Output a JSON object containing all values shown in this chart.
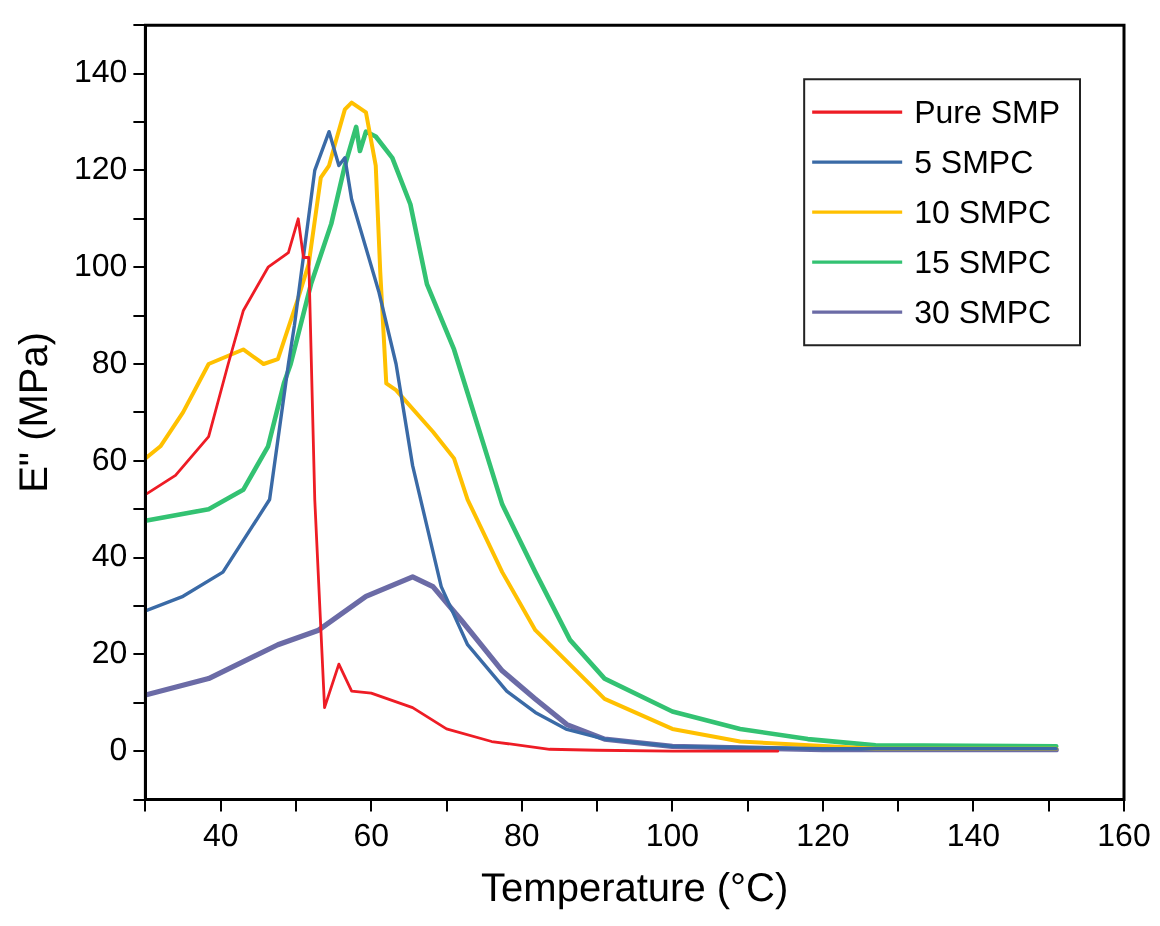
{
  "chart_data": {
    "type": "line",
    "xlabel": "Temperature (°C)",
    "ylabel": "E\" (MPa)",
    "xlim": [
      30,
      160
    ],
    "ylim": [
      -10,
      150
    ],
    "xticks": [
      {
        "value": 30,
        "label": null
      },
      40,
      {
        "value": 50,
        "label": null
      },
      60,
      {
        "value": 70,
        "label": null
      },
      80,
      {
        "value": 90,
        "label": null
      },
      100,
      {
        "value": 110,
        "label": null
      },
      120,
      {
        "value": 130,
        "label": null
      },
      140,
      {
        "value": 150,
        "label": null
      },
      160
    ],
    "yticks": [
      {
        "value": -10,
        "label": null
      },
      0,
      {
        "value": 10,
        "label": null
      },
      20,
      {
        "value": 30,
        "label": null
      },
      40,
      {
        "value": 50,
        "label": null
      },
      60,
      {
        "value": 70,
        "label": null
      },
      80,
      {
        "value": 90,
        "label": null
      },
      100,
      {
        "value": 110,
        "label": null
      },
      120,
      {
        "value": 130,
        "label": null
      },
      140,
      {
        "value": 150,
        "label": null
      }
    ],
    "grid": false,
    "legend": "top right",
    "marker": "none",
    "line_style": "solid",
    "series": [
      {
        "name": "Pure SMP",
        "color": "#ee1c25",
        "x": [
          30,
          34,
          38.4,
          41,
          43,
          46.3,
          49,
          50.3,
          51,
          51.7,
          52.5,
          53.8,
          55.7,
          57.4,
          60,
          65.5,
          70,
          76,
          83.7,
          90,
          100,
          114
        ],
        "values": [
          53,
          57,
          65,
          80,
          91,
          100,
          103,
          110,
          102,
          102,
          52,
          9,
          18,
          12.4,
          12,
          9,
          4.6,
          2,
          0.4,
          0.2,
          0,
          0
        ]
      },
      {
        "name": "5 SMPC",
        "color": "#3a6aa6",
        "x": [
          30,
          35,
          40.3,
          46.5,
          49,
          49.8,
          52.5,
          54.4,
          55.7,
          56.5,
          57.4,
          61,
          63.3,
          65.5,
          69.3,
          72.8,
          78,
          81.8,
          86,
          91,
          100,
          120,
          151
        ],
        "values": [
          29,
          32,
          37,
          52,
          80,
          88,
          120,
          128,
          121,
          122.6,
          114,
          95,
          80,
          59,
          34,
          22,
          12.4,
          8,
          4.5,
          2.5,
          1,
          0.5,
          0.5
        ]
      },
      {
        "name": "10 SMPC",
        "color": "#ffc000",
        "x": [
          30,
          32,
          35,
          38.4,
          43,
          45.7,
          47.6,
          50.3,
          51.7,
          53.3,
          54.4,
          55.2,
          56.5,
          57.4,
          59.3,
          60.6,
          61.2,
          62,
          63.3,
          68.2,
          71,
          72.8,
          77.4,
          81.8,
          91,
          100,
          109,
          127,
          151
        ],
        "values": [
          60.5,
          63,
          70,
          80,
          83,
          80,
          81,
          93.6,
          100.7,
          118.5,
          121,
          125.5,
          132.6,
          134,
          132,
          121,
          99,
          76,
          74.6,
          66,
          60.5,
          52,
          37,
          25,
          10.8,
          4.6,
          2,
          0.5,
          0.5
        ]
      },
      {
        "name": "15 SMPC",
        "color": "#33c272",
        "x": [
          30,
          38.4,
          43,
          46.3,
          48.4,
          49.3,
          52,
          54.7,
          56.5,
          58,
          58.5,
          59.3,
          60.6,
          62.8,
          65.2,
          67.4,
          71,
          72.8,
          77.4,
          81.8,
          86.4,
          91,
          100,
          109,
          118,
          127,
          151
        ],
        "values": [
          47.6,
          50,
          54,
          63,
          76,
          80,
          96.5,
          109,
          121,
          129,
          124,
          128,
          127,
          122.6,
          113,
          96.5,
          83,
          74,
          51,
          37,
          23,
          15,
          8.2,
          4.6,
          2.5,
          1.2,
          1
        ]
      },
      {
        "name": "30 SMPC",
        "color": "#6b6ba6",
        "x": [
          30,
          38.4,
          47.6,
          53,
          59.3,
          65.5,
          68.2,
          72,
          77.4,
          81.8,
          86,
          91,
          100,
          120,
          151
        ],
        "values": [
          11.6,
          15,
          22,
          25,
          32,
          36,
          34,
          27,
          16.6,
          10.8,
          5.5,
          2.5,
          1,
          0.3,
          0.3
        ]
      }
    ]
  }
}
